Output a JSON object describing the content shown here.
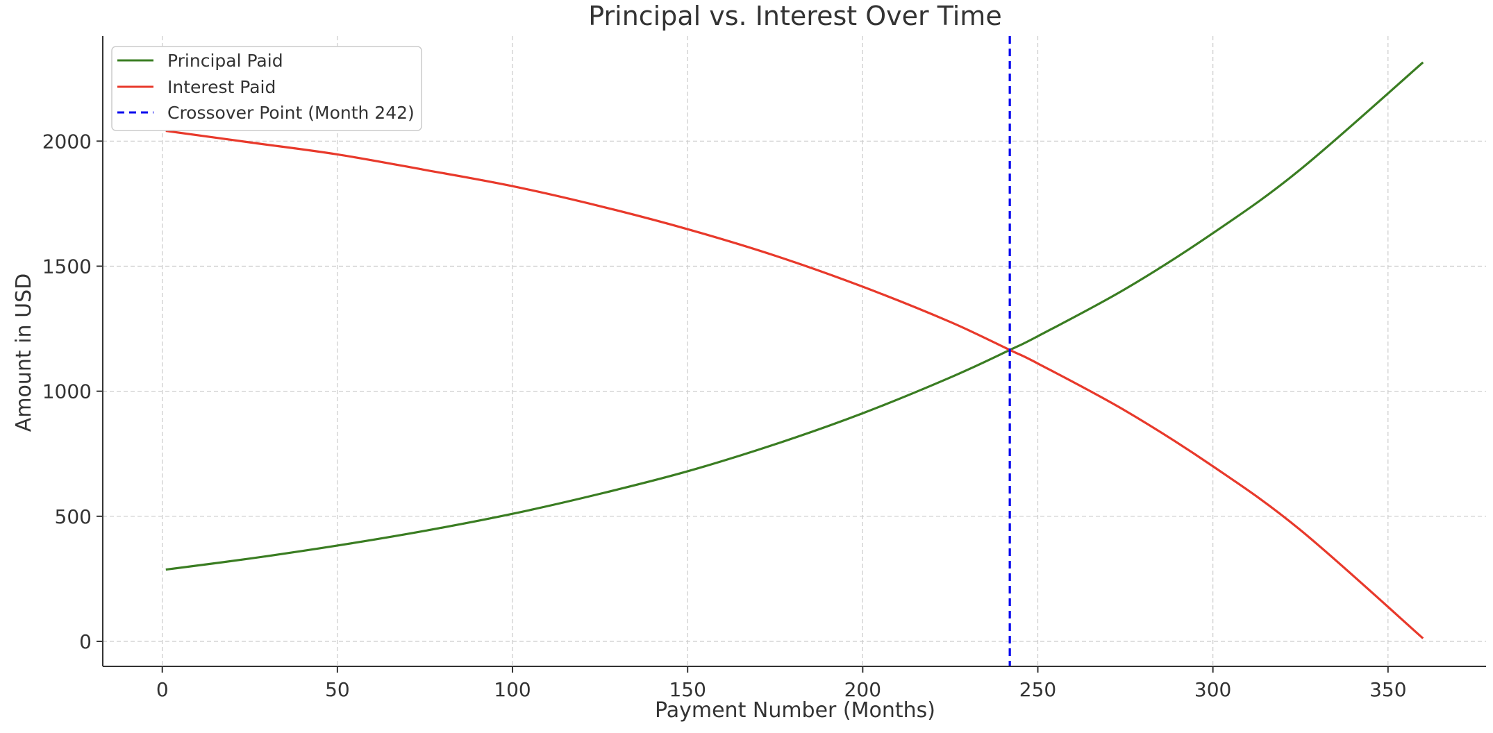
{
  "chart_data": {
    "type": "line",
    "title": "Principal vs. Interest Over Time",
    "xlabel": "Payment Number (Months)",
    "ylabel": "Amount in USD",
    "xlim": [
      -17,
      378
    ],
    "ylim": [
      -100,
      2420
    ],
    "xticks": [
      0,
      50,
      100,
      150,
      200,
      250,
      300,
      350
    ],
    "yticks": [
      0,
      500,
      1000,
      1500,
      2000
    ],
    "grid": true,
    "legend_position": "top-left",
    "series": [
      {
        "name": "Principal Paid",
        "color": "#3a7d22",
        "x": [
          1,
          25,
          50,
          75,
          100,
          125,
          150,
          175,
          200,
          225,
          242,
          250,
          275,
          300,
          325,
          360
        ],
        "y": [
          287,
          331,
          383,
          442,
          510,
          590,
          680,
          788,
          912,
          1055,
          1165,
          1220,
          1409,
          1632,
          1887,
          2315
        ]
      },
      {
        "name": "Interest Paid",
        "color": "#e8392b",
        "x": [
          1,
          25,
          50,
          75,
          100,
          125,
          150,
          175,
          200,
          225,
          242,
          250,
          275,
          300,
          325,
          360
        ],
        "y": [
          2041,
          1995,
          1947,
          1885,
          1820,
          1740,
          1648,
          1542,
          1418,
          1277,
          1165,
          1111,
          922,
          700,
          445,
          12
        ]
      }
    ],
    "reference_lines": [
      {
        "name": "Crossover Point (Month 242)",
        "orientation": "vertical",
        "x": 242,
        "color": "#0000ee",
        "style": "dashed"
      }
    ]
  }
}
